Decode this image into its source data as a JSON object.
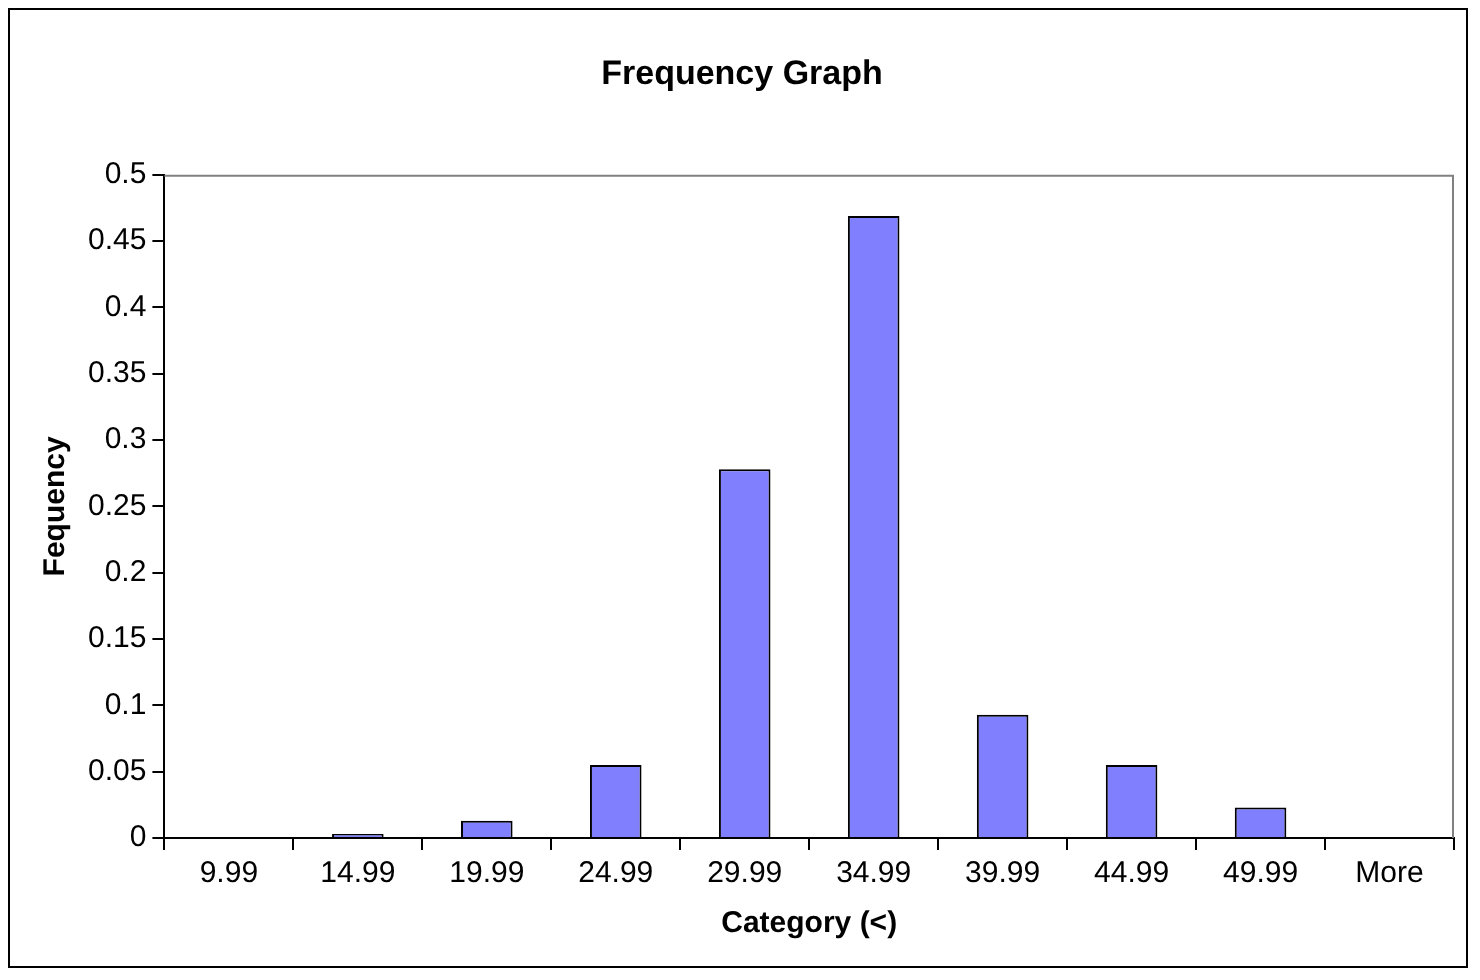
{
  "chart_data": {
    "type": "bar",
    "title": "Frequency Graph",
    "xlabel": "Category (<)",
    "ylabel": "Fequency",
    "categories": [
      "9.99",
      "14.99",
      "19.99",
      "24.99",
      "29.99",
      "34.99",
      "39.99",
      "44.99",
      "49.99",
      "More"
    ],
    "values": [
      0,
      0.003,
      0.013,
      0.055,
      0.278,
      0.469,
      0.093,
      0.055,
      0.023,
      0
    ],
    "color": "#8080ff",
    "ylim": [
      0,
      0.5
    ],
    "yticks": [
      0,
      0.05,
      0.1,
      0.15,
      0.2,
      0.25,
      0.3,
      0.35,
      0.4,
      0.45,
      0.5
    ],
    "grid": false,
    "legend": false
  }
}
